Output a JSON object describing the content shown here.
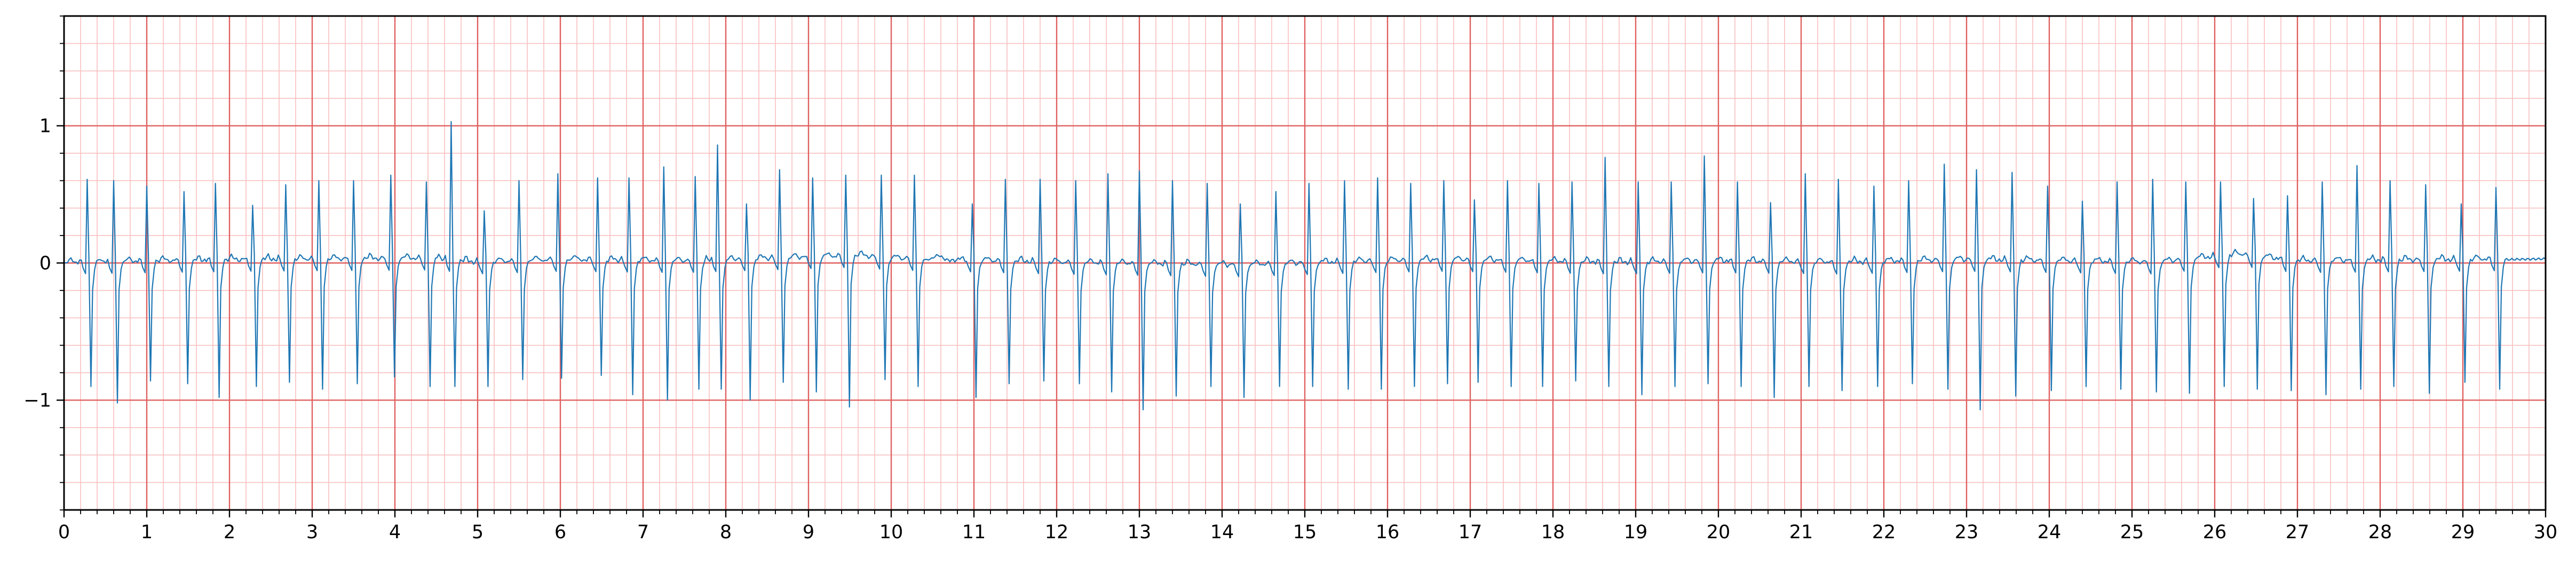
{
  "chart_data": {
    "type": "line",
    "title": "",
    "xlabel": "",
    "ylabel": "",
    "xlim": [
      0,
      30
    ],
    "ylim": [
      -1.8,
      1.8
    ],
    "x_ticks": [
      "0",
      "1",
      "2",
      "3",
      "4",
      "5",
      "6",
      "7",
      "8",
      "9",
      "10",
      "11",
      "12",
      "13",
      "14",
      "15",
      "16",
      "17",
      "18",
      "19",
      "20",
      "21",
      "22",
      "23",
      "24",
      "25",
      "26",
      "27",
      "28",
      "29",
      "30"
    ],
    "y_ticks": [
      "1",
      "0",
      "−1"
    ],
    "y_tick_values": [
      1,
      0,
      -1
    ],
    "grid": "ECG paper grid: major every 1 s / 1 unit, minor every 0.2 s / 0.2 units",
    "grid_major_color": "#e06060",
    "grid_minor_color": "#f8c0c0",
    "series": [
      {
        "line_color": "#1f77b4",
        "beats": {
          "t": [
            0.28,
            0.6,
            1.0,
            1.45,
            1.83,
            2.28,
            2.68,
            3.08,
            3.5,
            3.95,
            4.38,
            4.68,
            5.08,
            5.5,
            5.97,
            6.45,
            6.83,
            7.25,
            7.63,
            7.9,
            8.25,
            8.65,
            9.05,
            9.45,
            9.88,
            10.28,
            10.98,
            11.38,
            11.8,
            12.23,
            12.62,
            13.0,
            13.4,
            13.82,
            14.22,
            14.65,
            15.05,
            15.48,
            15.88,
            16.28,
            16.68,
            17.05,
            17.45,
            17.83,
            18.23,
            18.63,
            19.03,
            19.43,
            19.83,
            20.23,
            20.63,
            21.05,
            21.45,
            21.88,
            22.3,
            22.73,
            23.12,
            23.55,
            23.98,
            24.4,
            24.82,
            25.25,
            25.65,
            26.07,
            26.47,
            26.88,
            27.3,
            27.72,
            28.12,
            28.55,
            28.98,
            29.4
          ],
          "r": [
            0.61,
            0.6,
            0.56,
            0.52,
            0.58,
            0.42,
            0.57,
            0.6,
            0.6,
            0.64,
            0.59,
            1.03,
            0.38,
            0.6,
            0.65,
            0.62,
            0.62,
            0.7,
            0.63,
            0.86,
            0.43,
            0.68,
            0.62,
            0.64,
            0.64,
            0.64,
            0.43,
            0.61,
            0.61,
            0.6,
            0.65,
            0.67,
            0.6,
            0.58,
            0.43,
            0.52,
            0.58,
            0.6,
            0.62,
            0.58,
            0.6,
            0.46,
            0.6,
            0.58,
            0.59,
            0.77,
            0.59,
            0.59,
            0.78,
            0.59,
            0.44,
            0.65,
            0.61,
            0.56,
            0.6,
            0.72,
            0.68,
            0.66,
            0.56,
            0.45,
            0.59,
            0.61,
            0.59,
            0.59,
            0.47,
            0.49,
            0.59,
            0.71,
            0.6,
            0.57,
            0.43,
            0.55
          ],
          "s": [
            -0.9,
            -1.02,
            -0.86,
            -0.88,
            -0.98,
            -0.9,
            -0.87,
            -0.92,
            -0.88,
            -0.83,
            -0.9,
            -0.9,
            -0.9,
            -0.85,
            -0.84,
            -0.82,
            -0.96,
            -1.0,
            -0.92,
            -0.92,
            -1.0,
            -0.87,
            -0.94,
            -1.05,
            -0.85,
            -0.9,
            -0.98,
            -0.88,
            -0.86,
            -0.88,
            -0.94,
            -1.07,
            -0.97,
            -0.9,
            -0.98,
            -0.9,
            -0.9,
            -0.92,
            -0.92,
            -0.9,
            -0.88,
            -0.87,
            -0.9,
            -0.9,
            -0.86,
            -0.9,
            -0.96,
            -0.9,
            -0.88,
            -0.9,
            -0.98,
            -0.9,
            -0.93,
            -0.9,
            -0.88,
            -0.92,
            -1.07,
            -0.97,
            -0.93,
            -0.9,
            -0.92,
            -0.94,
            -0.95,
            -0.9,
            -0.92,
            -0.93,
            -0.96,
            -0.92,
            -0.9,
            -0.95,
            -0.87,
            -0.92
          ]
        },
        "baseline_t": [
          0,
          2.2,
          4.5,
          5.0,
          6.0,
          7.5,
          9.6,
          10.0,
          12.0,
          14.2,
          15.8,
          16.7,
          18.8,
          20.0,
          21.5,
          23.0,
          25.3,
          26.3,
          27.0,
          29.0,
          30.0
        ],
        "baseline_v": [
          0.0,
          0.02,
          0.03,
          0.0,
          0.02,
          0.01,
          0.05,
          0.03,
          0.0,
          -0.02,
          0.01,
          0.02,
          0.0,
          0.01,
          0.0,
          0.02,
          0.0,
          0.06,
          0.01,
          0.02,
          0.03
        ]
      }
    ]
  }
}
